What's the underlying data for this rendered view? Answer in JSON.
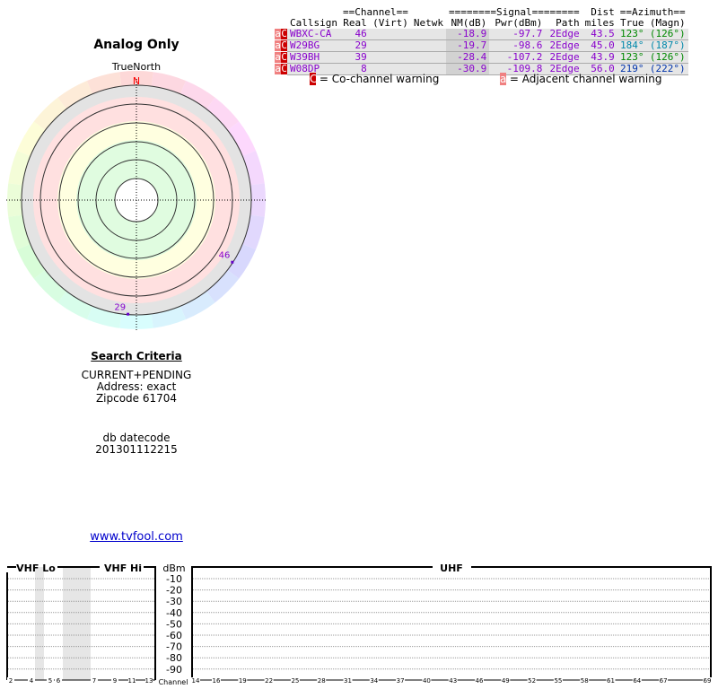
{
  "title": "Analog Only",
  "true_north": "TrueNorth",
  "north": "N",
  "polar_markers": [
    {
      "channel": "46",
      "azimuth": 123
    },
    {
      "channel": "29",
      "azimuth": 184
    }
  ],
  "criteria": {
    "heading": "Search Criteria",
    "lines": [
      "CURRENT+PENDING",
      "Address: exact",
      "Zipcode 61704"
    ],
    "db_label": "db datecode",
    "db_value": "201301112215"
  },
  "link": "www.tvfool.com",
  "table": {
    "group_headers": {
      "channel": "==Channel==",
      "signal": "========Signal========",
      "dist": "Dist",
      "azimuth": "==Azimuth=="
    },
    "headers": [
      "Callsign",
      "Real",
      "(Virt)",
      "Netwk",
      "NM(dB)",
      "Pwr(dBm)",
      "Path",
      "miles",
      "True",
      "(Magn)"
    ],
    "rows": [
      {
        "warn_a": "a",
        "warn_c": "C",
        "callsign": "WBXC-CA",
        "real": "46",
        "virt": "",
        "netwk": "",
        "nm": "-18.9",
        "pwr": "-97.7",
        "path": "2Edge",
        "miles": "43.5",
        "true": "123°",
        "magn": "(126°)",
        "az_color": "#080"
      },
      {
        "warn_a": "a",
        "warn_c": "C",
        "callsign": "W29BG",
        "real": "29",
        "virt": "",
        "netwk": "",
        "nm": "-19.7",
        "pwr": "-98.6",
        "path": "2Edge",
        "miles": "45.0",
        "true": "184°",
        "magn": "(187°)",
        "az_color": "#08a"
      },
      {
        "warn_a": "a",
        "warn_c": "C",
        "callsign": "W39BH",
        "real": "39",
        "virt": "",
        "netwk": "",
        "nm": "-28.4",
        "pwr": "-107.2",
        "path": "2Edge",
        "miles": "43.9",
        "true": "123°",
        "magn": "(126°)",
        "az_color": "#080"
      },
      {
        "warn_a": "a",
        "warn_c": "C",
        "callsign": "W08DP",
        "real": "8",
        "virt": "",
        "netwk": "",
        "nm": "-30.9",
        "pwr": "-109.8",
        "path": "2Edge",
        "miles": "56.0",
        "true": "219°",
        "magn": "(222°)",
        "az_color": "#03a"
      }
    ]
  },
  "legend": {
    "co_icon": "C",
    "co_text": "= Co-channel warning",
    "adj_icon": "a",
    "adj_text": "= Adjacent channel warning"
  },
  "spectrum": {
    "vhf_lo": "VHF Lo",
    "vhf_hi": "VHF Hi",
    "uhf": "UHF",
    "dbm": "dBm",
    "channel_label": "Channel",
    "dbm_ticks": [
      "-10",
      "-20",
      "-30",
      "-40",
      "-50",
      "-60",
      "-70",
      "-80",
      "-90"
    ],
    "vhf_channels": [
      "2",
      "4",
      "5",
      "6",
      "7",
      "9",
      "11",
      "13"
    ],
    "uhf_channels": [
      "14",
      "16",
      "19",
      "22",
      "25",
      "28",
      "31",
      "34",
      "37",
      "40",
      "43",
      "46",
      "49",
      "52",
      "55",
      "58",
      "61",
      "64",
      "67",
      "69"
    ],
    "shaded_channels": [
      "5",
      "6"
    ]
  }
}
